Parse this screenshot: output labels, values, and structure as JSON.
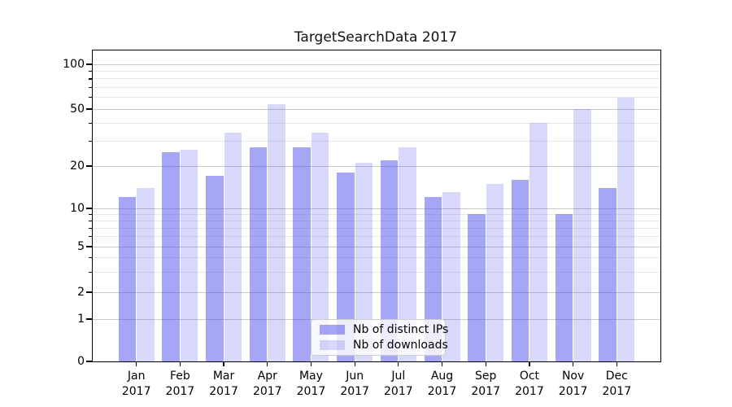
{
  "title": "TargetSearchData 2017",
  "chart_data": {
    "type": "bar",
    "title": "TargetSearchData 2017",
    "categories": [
      "Jan",
      "Feb",
      "Mar",
      "Apr",
      "May",
      "Jun",
      "Jul",
      "Aug",
      "Sep",
      "Oct",
      "Nov",
      "Dec"
    ],
    "x_tick_second_line": "2017",
    "series": [
      {
        "name": "Nb of distinct IPs",
        "color": "rgba(85,85,238,0.52)",
        "values": [
          12,
          25,
          17,
          27,
          27,
          18,
          22,
          12,
          9,
          16,
          9,
          14
        ]
      },
      {
        "name": "Nb of downloads",
        "color": "rgba(85,85,238,0.23)",
        "values": [
          14,
          26,
          34,
          54,
          34,
          21,
          27,
          13,
          15,
          40,
          50,
          60
        ]
      }
    ],
    "yscale": "symlog",
    "yticks": [
      0,
      1,
      2,
      5,
      10,
      20,
      50,
      100
    ],
    "yticks_minor": [
      3,
      4,
      6,
      7,
      8,
      9,
      30,
      40,
      60,
      70,
      80,
      90
    ],
    "ylim": [
      0,
      130
    ],
    "grid": true,
    "legend_position": "lower center"
  },
  "colors": {
    "grid_major": "#c9c9c9",
    "grid_minor": "#e9e9e9",
    "axis": "#000000",
    "background": "#ffffff",
    "legend_border": "#cccccc",
    "legend_background": "rgba(255,255,255,0.8)"
  }
}
